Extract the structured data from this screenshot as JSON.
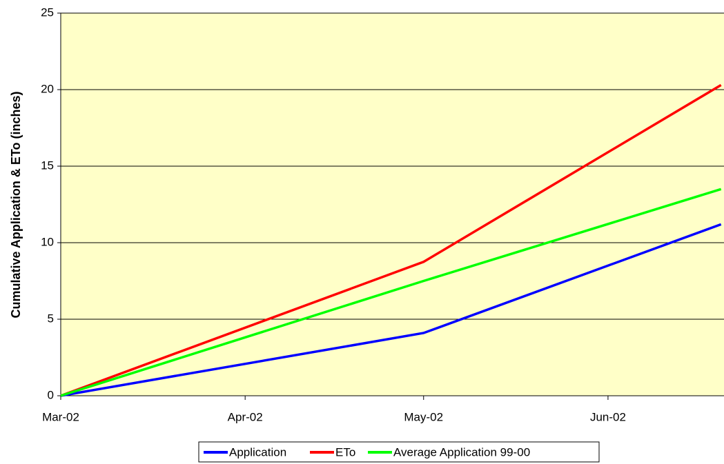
{
  "chart_data": {
    "type": "line",
    "ylabel": "Cumulative Application & ETo  (inches)",
    "x": [
      0,
      61,
      111
    ],
    "xlim": [
      0,
      111.5
    ],
    "xticks": [
      {
        "value": 0,
        "label": "Mar-02"
      },
      {
        "value": 31,
        "label": "Apr-02"
      },
      {
        "value": 61,
        "label": "May-02"
      },
      {
        "value": 92,
        "label": "Jun-02"
      }
    ],
    "ylim": [
      0,
      25
    ],
    "yticks": [
      0,
      5,
      10,
      15,
      20,
      25
    ],
    "grid": true,
    "legend": "bottom",
    "series": [
      {
        "name": "Application",
        "color": "#0000ff",
        "values": [
          0,
          4.1,
          11.2
        ]
      },
      {
        "name": "ETo",
        "color": "#ff0000",
        "values": [
          0,
          8.75,
          20.3
        ]
      },
      {
        "name": "Average Application 99-00",
        "color": "#00ff00",
        "values": [
          0,
          7.5,
          13.5
        ]
      }
    ]
  }
}
